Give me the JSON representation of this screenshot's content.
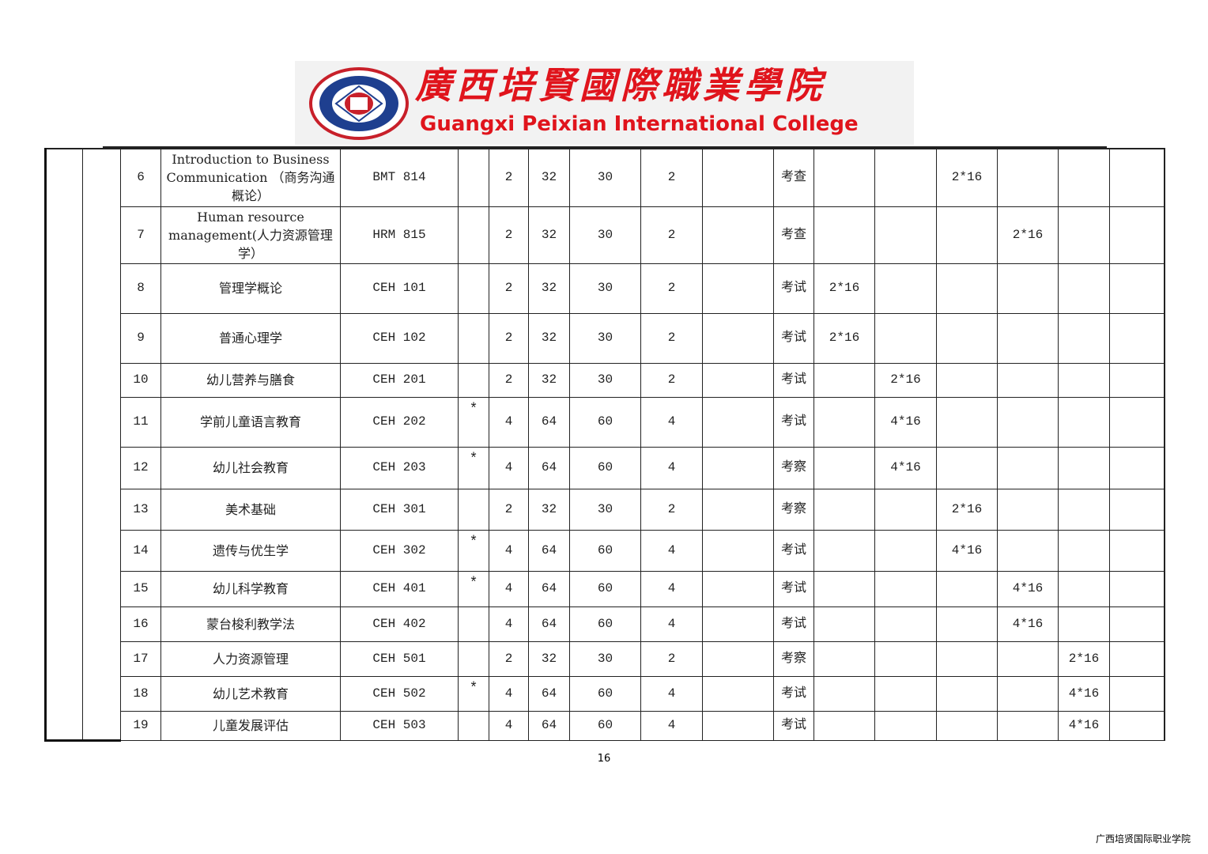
{
  "header": {
    "title_cn": "廣西培賢國際職業學院",
    "title_en": "Guangxi Peixian International College",
    "logo_color": "#e0141c",
    "seal_text": "广西培贤国际职业学院 GUANGXI PEIXIAN INTERNATIONAL COLLEGE"
  },
  "table": {
    "rows": [
      {
        "no": "6",
        "name": "Introduction to Business Communication （商务沟通概论）",
        "code": "BMT 814",
        "core": "",
        "credits": "2",
        "hours": "32",
        "theory": "30",
        "practice": "2",
        "extra": "",
        "assess": "考查",
        "s1": "",
        "s2": "",
        "s3": "2*16",
        "s4": "",
        "s5": "",
        "s6": ""
      },
      {
        "no": "7",
        "name": "Human resource management(人力资源管理学）",
        "code": "HRM 815",
        "core": "",
        "credits": "2",
        "hours": "32",
        "theory": "30",
        "practice": "2",
        "extra": "",
        "assess": "考查",
        "s1": "",
        "s2": "",
        "s3": "",
        "s4": "2*16",
        "s5": "",
        "s6": ""
      },
      {
        "no": "8",
        "name": "管理学概论",
        "code": "CEH 101",
        "core": "",
        "credits": "2",
        "hours": "32",
        "theory": "30",
        "practice": "2",
        "extra": "",
        "assess": "考试",
        "s1": "2*16",
        "s2": "",
        "s3": "",
        "s4": "",
        "s5": "",
        "s6": ""
      },
      {
        "no": "9",
        "name": "普通心理学",
        "code": "CEH 102",
        "core": "",
        "credits": "2",
        "hours": "32",
        "theory": "30",
        "practice": "2",
        "extra": "",
        "assess": "考试",
        "s1": "2*16",
        "s2": "",
        "s3": "",
        "s4": "",
        "s5": "",
        "s6": ""
      },
      {
        "no": "10",
        "name": "幼儿营养与膳食",
        "code": "CEH 201",
        "core": "",
        "credits": "2",
        "hours": "32",
        "theory": "30",
        "practice": "2",
        "extra": "",
        "assess": "考试",
        "s1": "",
        "s2": "2*16",
        "s3": "",
        "s4": "",
        "s5": "",
        "s6": ""
      },
      {
        "no": "11",
        "name": "学前儿童语言教育",
        "code": "CEH 202",
        "core": "*",
        "credits": "4",
        "hours": "64",
        "theory": "60",
        "practice": "4",
        "extra": "",
        "assess": "考试",
        "s1": "",
        "s2": "4*16",
        "s3": "",
        "s4": "",
        "s5": "",
        "s6": ""
      },
      {
        "no": "12",
        "name": "幼儿社会教育",
        "code": "CEH 203",
        "core": "*",
        "credits": "4",
        "hours": "64",
        "theory": "60",
        "practice": "4",
        "extra": "",
        "assess": "考察",
        "s1": "",
        "s2": "4*16",
        "s3": "",
        "s4": "",
        "s5": "",
        "s6": ""
      },
      {
        "no": "13",
        "name": "美术基础",
        "code": "CEH 301",
        "core": "",
        "credits": "2",
        "hours": "32",
        "theory": "30",
        "practice": "2",
        "extra": "",
        "assess": "考察",
        "s1": "",
        "s2": "",
        "s3": "2*16",
        "s4": "",
        "s5": "",
        "s6": ""
      },
      {
        "no": "14",
        "name": "遗传与优生学",
        "code": "CEH 302",
        "core": "*",
        "credits": "4",
        "hours": "64",
        "theory": "60",
        "practice": "4",
        "extra": "",
        "assess": "考试",
        "s1": "",
        "s2": "",
        "s3": "4*16",
        "s4": "",
        "s5": "",
        "s6": ""
      },
      {
        "no": "15",
        "name": "幼儿科学教育",
        "code": "CEH 401",
        "core": "*",
        "credits": "4",
        "hours": "64",
        "theory": "60",
        "practice": "4",
        "extra": "",
        "assess": "考试",
        "s1": "",
        "s2": "",
        "s3": "",
        "s4": "4*16",
        "s5": "",
        "s6": ""
      },
      {
        "no": "16",
        "name": "蒙台梭利教学法",
        "code": "CEH 402",
        "core": "",
        "credits": "4",
        "hours": "64",
        "theory": "60",
        "practice": "4",
        "extra": "",
        "assess": "考试",
        "s1": "",
        "s2": "",
        "s3": "",
        "s4": "4*16",
        "s5": "",
        "s6": ""
      },
      {
        "no": "17",
        "name": "人力资源管理",
        "code": "CEH 501",
        "core": "",
        "credits": "2",
        "hours": "32",
        "theory": "30",
        "practice": "2",
        "extra": "",
        "assess": "考察",
        "s1": "",
        "s2": "",
        "s3": "",
        "s4": "",
        "s5": "2*16",
        "s6": ""
      },
      {
        "no": "18",
        "name": "幼儿艺术教育",
        "code": "CEH 502",
        "core": "*",
        "credits": "4",
        "hours": "64",
        "theory": "60",
        "practice": "4",
        "extra": "",
        "assess": "考试",
        "s1": "",
        "s2": "",
        "s3": "",
        "s4": "",
        "s5": "4*16",
        "s6": ""
      },
      {
        "no": "19",
        "name": "儿童发展评估",
        "code": "CEH 503",
        "core": "",
        "credits": "4",
        "hours": "64",
        "theory": "60",
        "practice": "4",
        "extra": "",
        "assess": "考试",
        "s1": "",
        "s2": "",
        "s3": "",
        "s4": "",
        "s5": "4*16",
        "s6": ""
      }
    ]
  },
  "page_number": "16",
  "footer": "广西培贤国际职业学院"
}
